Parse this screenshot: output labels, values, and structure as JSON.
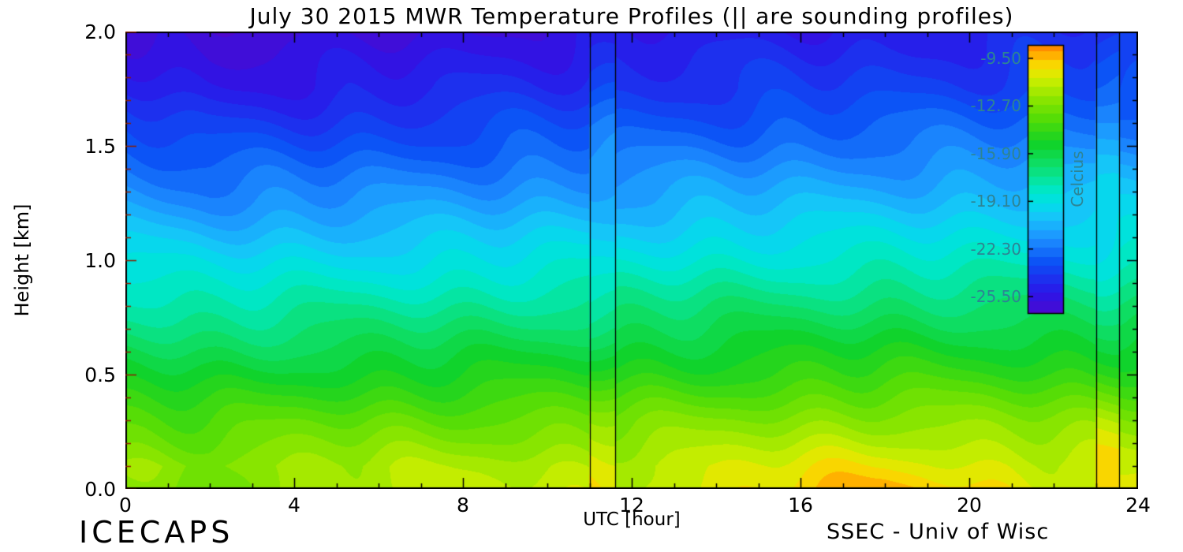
{
  "chart": {
    "title": "July 30 2015 MWR Temperature Profiles (|| are sounding profiles)",
    "xlabel": "UTC [hour]",
    "ylabel": "Height [km]",
    "footer_left": "ICECAPS",
    "footer_right": "SSEC - Univ of Wisc",
    "x_ticks": [
      "0",
      "4",
      "8",
      "12",
      "16",
      "20",
      "24"
    ],
    "y_ticks": [
      "2.0",
      "1.5",
      "1.0",
      "0.5",
      "0.0"
    ],
    "colorbar": {
      "label": "Celcius",
      "label_color": "#2d8494",
      "ticks": [
        "-9.50",
        "-12.70",
        "-15.90",
        "-19.10",
        "-22.30",
        "-25.50"
      ]
    }
  },
  "chart_data": {
    "type": "heatmap",
    "style": "filled-contour time-height cross-section",
    "title": "July 30 2015 MWR Temperature Profiles (|| are sounding profiles)",
    "xlabel": "UTC [hour]",
    "ylabel": "Height [km]",
    "colorbar_label": "Celcius",
    "x_range": [
      0,
      24
    ],
    "y_range": [
      0,
      2
    ],
    "x_major_tick_step": 4,
    "x_minor_tick_step": 1,
    "y_major_tick_step": 0.5,
    "y_minor_tick_step": 0.1,
    "hours": [
      0,
      2,
      4,
      6,
      8,
      10,
      12,
      14,
      16,
      18,
      20,
      22,
      24
    ],
    "heights_km": [
      0.0,
      0.1,
      0.3,
      0.5,
      0.75,
      1.0,
      1.25,
      1.5,
      1.75,
      2.0
    ],
    "temperature_c": [
      [
        -12.6,
        -13.0,
        -11.6,
        -11.4,
        -11.3,
        -11.2,
        -11.0,
        -10.6,
        -9.8,
        -9.3,
        -10.0,
        -10.6,
        -10.9
      ],
      [
        -12.0,
        -12.3,
        -11.9,
        -11.7,
        -11.6,
        -11.5,
        -11.3,
        -11.0,
        -10.5,
        -10.2,
        -10.7,
        -11.0,
        -11.2
      ],
      [
        -13.5,
        -13.8,
        -13.4,
        -13.2,
        -13.1,
        -13.0,
        -12.8,
        -12.6,
        -12.3,
        -12.1,
        -12.3,
        -12.5,
        -12.6
      ],
      [
        -15.3,
        -15.5,
        -15.2,
        -15.1,
        -15.0,
        -14.9,
        -14.7,
        -14.5,
        -14.3,
        -14.2,
        -14.3,
        -14.4,
        -14.4
      ],
      [
        -17.2,
        -17.5,
        -17.3,
        -17.2,
        -17.1,
        -16.9,
        -16.7,
        -16.5,
        -16.4,
        -16.3,
        -16.3,
        -16.4,
        -16.3
      ],
      [
        -19.2,
        -19.5,
        -19.4,
        -19.3,
        -19.2,
        -19.0,
        -18.8,
        -18.6,
        -18.5,
        -18.4,
        -18.4,
        -18.4,
        -18.2
      ],
      [
        -21.2,
        -21.6,
        -21.5,
        -21.4,
        -21.2,
        -21.0,
        -20.8,
        -20.6,
        -20.5,
        -20.4,
        -20.3,
        -20.2,
        -20.0
      ],
      [
        -23.0,
        -23.4,
        -23.3,
        -23.2,
        -23.0,
        -22.8,
        -22.6,
        -22.4,
        -22.3,
        -22.2,
        -22.1,
        -22.0,
        -21.7
      ],
      [
        -24.6,
        -25.1,
        -25.0,
        -24.9,
        -24.6,
        -24.4,
        -24.2,
        -24.0,
        -23.9,
        -23.8,
        -23.7,
        -23.5,
        -23.2
      ],
      [
        -25.8,
        -26.3,
        -26.2,
        -26.0,
        -25.7,
        -25.5,
        -25.3,
        -25.1,
        -25.0,
        -24.9,
        -24.8,
        -24.6,
        -24.2
      ]
    ],
    "contour_interval_c": 0.6,
    "sounding_hours": [
      [
        11.0,
        11.6
      ],
      [
        23.0,
        23.55
      ]
    ],
    "colorbar_range": [
      -8.6,
      -26.6
    ],
    "colorbar_tick_values": [
      -9.5,
      -12.7,
      -15.9,
      -19.1,
      -22.3,
      -25.5
    ],
    "colormap": [
      [
        -27.0,
        "#5505c8"
      ],
      [
        -25.2,
        "#2b16e8"
      ],
      [
        -23.2,
        "#0b50f5"
      ],
      [
        -21.6,
        "#1e90ff"
      ],
      [
        -20.2,
        "#17c3fa"
      ],
      [
        -19.2,
        "#00e0e8"
      ],
      [
        -18.2,
        "#00e8c0"
      ],
      [
        -16.8,
        "#0ddf70"
      ],
      [
        -15.2,
        "#10d228"
      ],
      [
        -13.6,
        "#52dc06"
      ],
      [
        -12.2,
        "#8ce600"
      ],
      [
        -11.0,
        "#c8ee00"
      ],
      [
        -10.2,
        "#f2e500"
      ],
      [
        -9.6,
        "#ffc800"
      ],
      [
        -9.0,
        "#ff9b00"
      ],
      [
        -8.4,
        "#ff7e00"
      ]
    ],
    "axis_color": "#000000",
    "left_tick_color": "#8b1e00",
    "sounding_line_color": "#000000"
  }
}
